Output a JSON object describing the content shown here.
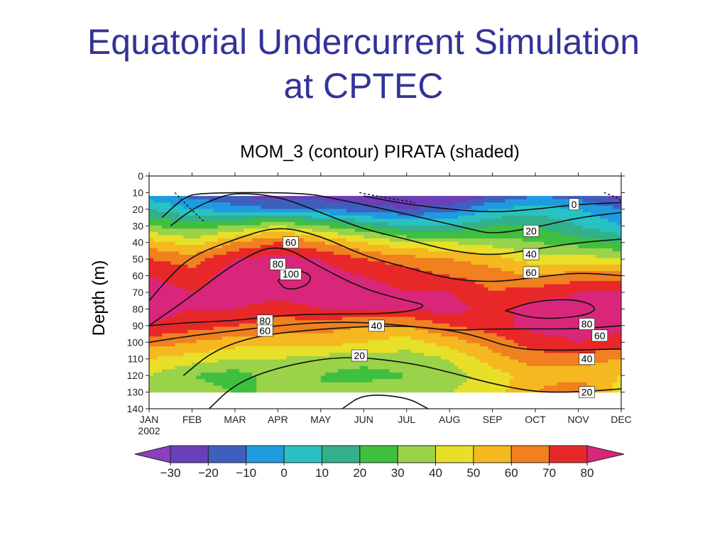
{
  "slide": {
    "title_line1": "Equatorial Undercurrent Simulation",
    "title_line2": "at CPTEC"
  },
  "chart_data": {
    "type": "heatmap",
    "title": "MOM_3 (contour)  PIRATA (shaded)",
    "xlabel": "",
    "ylabel": "Depth (m)",
    "x_ticks": [
      "JAN",
      "FEB",
      "MAR",
      "APR",
      "MAY",
      "JUN",
      "JUL",
      "AUG",
      "SEP",
      "OCT",
      "NOV",
      "DEC"
    ],
    "x_year_label": "2002",
    "y_ticks": [
      0,
      10,
      20,
      30,
      40,
      50,
      60,
      70,
      80,
      90,
      100,
      110,
      120,
      130,
      140
    ],
    "ylim": [
      140,
      0
    ],
    "colorbar": {
      "levels": [
        -30,
        -20,
        -10,
        0,
        10,
        20,
        30,
        40,
        50,
        60,
        70,
        80
      ],
      "tick_labels": [
        "−30",
        "−20",
        "−10",
        "0",
        "10",
        "20",
        "30",
        "40",
        "50",
        "60",
        "70",
        "80"
      ],
      "colors": [
        "#8c3fbe",
        "#6a3fb8",
        "#3f5fbf",
        "#1f9be0",
        "#29c2c4",
        "#33b08a",
        "#3fbf3f",
        "#9ad24a",
        "#e8e028",
        "#f5b820",
        "#f08020",
        "#e82828",
        "#d8277a"
      ],
      "extend": "both"
    },
    "shaded_field": {
      "name": "PIRATA",
      "months": [
        0,
        1,
        2,
        3,
        4,
        5,
        6,
        7,
        8,
        9,
        10,
        11
      ],
      "depths": [
        12,
        20,
        30,
        40,
        50,
        60,
        70,
        80,
        90,
        100,
        110,
        120,
        130
      ],
      "values": [
        [
          -5,
          -12,
          -20,
          -25,
          -25,
          -28,
          -30,
          -30,
          -20,
          -10,
          -15,
          -25
        ],
        [
          10,
          0,
          -5,
          -10,
          -10,
          -15,
          -20,
          -15,
          0,
          5,
          0,
          -10
        ],
        [
          30,
          25,
          30,
          40,
          30,
          20,
          10,
          10,
          20,
          20,
          10,
          0
        ],
        [
          55,
          45,
          60,
          70,
          60,
          50,
          40,
          40,
          35,
          30,
          25,
          20
        ],
        [
          70,
          65,
          80,
          85,
          80,
          70,
          65,
          60,
          55,
          45,
          45,
          40
        ],
        [
          80,
          75,
          85,
          90,
          85,
          80,
          75,
          70,
          65,
          60,
          65,
          65
        ],
        [
          85,
          80,
          85,
          85,
          85,
          85,
          80,
          80,
          70,
          75,
          80,
          80
        ],
        [
          85,
          80,
          80,
          75,
          80,
          80,
          80,
          85,
          75,
          85,
          85,
          85
        ],
        [
          80,
          75,
          70,
          65,
          65,
          60,
          60,
          70,
          75,
          85,
          85,
          85
        ],
        [
          65,
          60,
          55,
          55,
          55,
          50,
          45,
          55,
          65,
          75,
          80,
          75
        ],
        [
          50,
          45,
          40,
          40,
          35,
          35,
          35,
          40,
          55,
          65,
          65,
          60
        ],
        [
          40,
          30,
          25,
          35,
          30,
          25,
          30,
          35,
          45,
          55,
          55,
          50
        ],
        [
          40,
          35,
          30,
          30,
          30,
          40,
          35,
          40,
          45,
          60,
          70,
          45
        ]
      ]
    },
    "contours": [
      {
        "label": "100",
        "points": [
          [
            3.0,
            63
          ],
          [
            3.3,
            56
          ],
          [
            3.8,
            59
          ],
          [
            3.7,
            66
          ],
          [
            3.2,
            69
          ],
          [
            3.0,
            63
          ]
        ]
      },
      {
        "label": "80",
        "points": [
          [
            0.0,
            90
          ],
          [
            1.0,
            72
          ],
          [
            2.0,
            52
          ],
          [
            3.0,
            40
          ],
          [
            4.0,
            55
          ],
          [
            5.0,
            68
          ],
          [
            6.0,
            75
          ],
          [
            6.5,
            78
          ],
          [
            6.0,
            82
          ],
          [
            5.0,
            83
          ],
          [
            4.0,
            83
          ],
          [
            3.0,
            84
          ],
          [
            2.0,
            87
          ],
          [
            1.0,
            88
          ],
          [
            0.0,
            90
          ]
        ]
      },
      {
        "label": "80",
        "points": [
          [
            8.3,
            81
          ],
          [
            9.0,
            75
          ],
          [
            10.0,
            74
          ],
          [
            10.5,
            80
          ],
          [
            10.0,
            85
          ],
          [
            9.0,
            86
          ],
          [
            8.3,
            81
          ]
        ]
      },
      {
        "label": "60",
        "points": [
          [
            0.0,
            75
          ],
          [
            0.5,
            60
          ],
          [
            1.0,
            48
          ],
          [
            2.0,
            38
          ],
          [
            3.0,
            30
          ],
          [
            4.0,
            36
          ],
          [
            5.0,
            48
          ],
          [
            6.0,
            55
          ],
          [
            7.0,
            62
          ],
          [
            8.0,
            64
          ],
          [
            9.0,
            61
          ],
          [
            10.0,
            58
          ],
          [
            11.0,
            60
          ]
        ]
      },
      {
        "label": "60",
        "points": [
          [
            0.0,
            100
          ],
          [
            1.0,
            96
          ],
          [
            2.0,
            93
          ],
          [
            3.0,
            90
          ],
          [
            4.0,
            88
          ],
          [
            5.0,
            88
          ],
          [
            6.0,
            90
          ],
          [
            7.0,
            93
          ],
          [
            8.0,
            92
          ],
          [
            9.0,
            92
          ],
          [
            10.0,
            92
          ],
          [
            11.0,
            90
          ]
        ]
      },
      {
        "label": "40",
        "points": [
          [
            0.8,
            120
          ],
          [
            1.5,
            105
          ],
          [
            2.5,
            96
          ],
          [
            4.0,
            92
          ],
          [
            5.5,
            90
          ],
          [
            6.5,
            91
          ],
          [
            7.5,
            95
          ],
          [
            8.5,
            104
          ],
          [
            9.5,
            105
          ],
          [
            11.0,
            104
          ]
        ]
      },
      {
        "label": "40",
        "points": [
          [
            0.5,
            30
          ],
          [
            1.0,
            20
          ],
          [
            1.5,
            14
          ],
          [
            2.0,
            10
          ],
          [
            3.0,
            12
          ],
          [
            4.0,
            22
          ],
          [
            5.0,
            32
          ],
          [
            6.0,
            38
          ],
          [
            7.0,
            45
          ],
          [
            8.0,
            48
          ],
          [
            9.0,
            44
          ],
          [
            10.0,
            40
          ],
          [
            11.0,
            38
          ]
        ]
      },
      {
        "label": "20",
        "points": [
          [
            0.3,
            25
          ],
          [
            0.8,
            13
          ],
          [
            1.2,
            10
          ],
          [
            3.6,
            10
          ],
          [
            4.4,
            14
          ],
          [
            5.5,
            20
          ],
          [
            6.5,
            26
          ],
          [
            7.5,
            32
          ],
          [
            8.0,
            35
          ],
          [
            9.0,
            31
          ],
          [
            10.0,
            25
          ],
          [
            11.0,
            22
          ]
        ]
      },
      {
        "label": "20",
        "points": [
          [
            1.4,
            140
          ],
          [
            2.0,
            125
          ],
          [
            3.0,
            115
          ],
          [
            4.5,
            108
          ],
          [
            6.0,
            112
          ],
          [
            7.0,
            118
          ],
          [
            8.0,
            125
          ],
          [
            9.0,
            130
          ],
          [
            10.0,
            130
          ],
          [
            11.0,
            128
          ]
        ]
      },
      {
        "label": "0",
        "points": [
          [
            5.0,
            12
          ],
          [
            6.0,
            17
          ],
          [
            7.0,
            20
          ],
          [
            8.0,
            22
          ],
          [
            9.0,
            20
          ],
          [
            10.0,
            17
          ],
          [
            11.0,
            16
          ]
        ]
      },
      {
        "label": "",
        "points": [
          [
            4.5,
            140
          ],
          [
            5.0,
            131
          ],
          [
            6.0,
            133
          ],
          [
            6.5,
            140
          ]
        ]
      }
    ],
    "contour_labels": [
      {
        "text": "100",
        "month": 3.3,
        "depth": 59
      },
      {
        "text": "80",
        "month": 3.0,
        "depth": 53
      },
      {
        "text": "60",
        "month": 3.3,
        "depth": 40
      },
      {
        "text": "80",
        "month": 2.7,
        "depth": 87
      },
      {
        "text": "60",
        "month": 2.7,
        "depth": 93
      },
      {
        "text": "40",
        "month": 5.3,
        "depth": 90
      },
      {
        "text": "20",
        "month": 4.9,
        "depth": 108
      },
      {
        "text": "0",
        "month": 9.9,
        "depth": 17
      },
      {
        "text": "20",
        "month": 8.9,
        "depth": 33
      },
      {
        "text": "40",
        "month": 8.9,
        "depth": 47
      },
      {
        "text": "60",
        "month": 8.9,
        "depth": 58
      },
      {
        "text": "80",
        "month": 10.2,
        "depth": 89
      },
      {
        "text": "60",
        "month": 10.5,
        "depth": 96
      },
      {
        "text": "40",
        "month": 10.2,
        "depth": 110
      },
      {
        "text": "20",
        "month": 10.2,
        "depth": 130
      }
    ]
  }
}
